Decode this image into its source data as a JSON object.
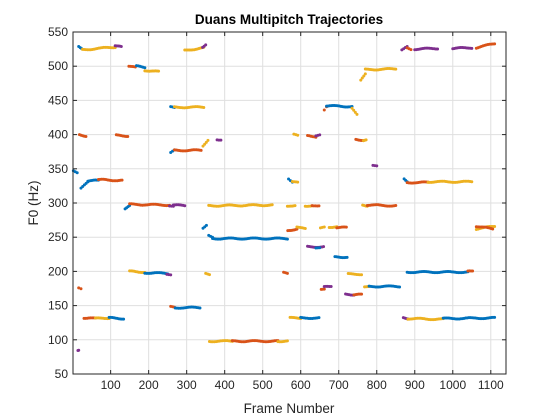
{
  "chart_data": {
    "type": "scatter",
    "title": "Duans Multipitch Trajectories",
    "xlabel": "Frame Number",
    "ylabel": "F0 (Hz)",
    "xlim": [
      1,
      1140
    ],
    "ylim": [
      50,
      550
    ],
    "xticks": [
      100,
      200,
      300,
      400,
      500,
      600,
      700,
      800,
      900,
      1000,
      1100
    ],
    "yticks": [
      50,
      100,
      150,
      200,
      250,
      300,
      350,
      400,
      450,
      500,
      550
    ],
    "grid": true,
    "legend": "none",
    "colors": {
      "blue": "#0072BD",
      "orange": "#D95319",
      "yellow": "#EDB120",
      "purple": "#7E2F8E"
    },
    "segments": [
      {
        "color": "blue",
        "x": [
          2,
          12
        ],
        "y": [
          348,
          345
        ]
      },
      {
        "color": "purple",
        "x": [
          14,
          16
        ],
        "y": [
          84,
          84
        ]
      },
      {
        "color": "orange",
        "x": [
          16,
          22
        ],
        "y": [
          175,
          174
        ]
      },
      {
        "color": "blue",
        "x": [
          16,
          24
        ],
        "y": [
          528,
          525
        ]
      },
      {
        "color": "yellow",
        "x": [
          26,
          112
        ],
        "y": [
          524,
          528
        ]
      },
      {
        "color": "orange",
        "x": [
          18,
          35
        ],
        "y": [
          400,
          398
        ]
      },
      {
        "color": "purple",
        "x": [
          112,
          128
        ],
        "y": [
          530,
          528
        ]
      },
      {
        "color": "blue",
        "x": [
          22,
          40
        ],
        "y": [
          322,
          330
        ]
      },
      {
        "color": "blue",
        "x": [
          40,
          68
        ],
        "y": [
          332,
          333
        ]
      },
      {
        "color": "orange",
        "x": [
          68,
          130
        ],
        "y": [
          334,
          333
        ]
      },
      {
        "color": "orange",
        "x": [
          30,
          60
        ],
        "y": [
          132,
          131
        ]
      },
      {
        "color": "yellow",
        "x": [
          60,
          96
        ],
        "y": [
          131,
          132
        ]
      },
      {
        "color": "blue",
        "x": [
          96,
          134
        ],
        "y": [
          132,
          131
        ]
      },
      {
        "color": "orange",
        "x": [
          115,
          145
        ],
        "y": [
          399,
          398
        ]
      },
      {
        "color": "blue",
        "x": [
          138,
          150
        ],
        "y": [
          292,
          296
        ]
      },
      {
        "color": "orange",
        "x": [
          150,
          255
        ],
        "y": [
          298,
          297
        ]
      },
      {
        "color": "orange",
        "x": [
          148,
          165
        ],
        "y": [
          500,
          498
        ]
      },
      {
        "color": "blue",
        "x": [
          168,
          190
        ],
        "y": [
          500,
          498
        ]
      },
      {
        "color": "yellow",
        "x": [
          190,
          226
        ],
        "y": [
          494,
          492
        ]
      },
      {
        "color": "yellow",
        "x": [
          150,
          190
        ],
        "y": [
          200,
          199
        ]
      },
      {
        "color": "blue",
        "x": [
          190,
          250
        ],
        "y": [
          198,
          197
        ]
      },
      {
        "color": "purple",
        "x": [
          248,
          258
        ],
        "y": [
          195,
          194
        ]
      },
      {
        "color": "purple",
        "x": [
          255,
          265
        ],
        "y": [
          296,
          295
        ]
      },
      {
        "color": "purple",
        "x": [
          265,
          295
        ],
        "y": [
          297,
          296
        ]
      },
      {
        "color": "orange",
        "x": [
          258,
          268
        ],
        "y": [
          148,
          147
        ]
      },
      {
        "color": "blue",
        "x": [
          270,
          335
        ],
        "y": [
          147,
          147
        ]
      },
      {
        "color": "blue",
        "x": [
          258,
          268
        ],
        "y": [
          373,
          377
        ]
      },
      {
        "color": "orange",
        "x": [
          268,
          338
        ],
        "y": [
          377,
          377
        ]
      },
      {
        "color": "blue",
        "x": [
          258,
          268
        ],
        "y": [
          440,
          439
        ]
      },
      {
        "color": "yellow",
        "x": [
          268,
          345
        ],
        "y": [
          440,
          440
        ]
      },
      {
        "color": "yellow",
        "x": [
          295,
          345
        ],
        "y": [
          523,
          527
        ]
      },
      {
        "color": "purple",
        "x": [
          342,
          350
        ],
        "y": [
          528,
          532
        ]
      },
      {
        "color": "blue",
        "x": [
          343,
          352
        ],
        "y": [
          264,
          268
        ]
      },
      {
        "color": "yellow",
        "x": [
          343,
          356
        ],
        "y": [
          384,
          392
        ]
      },
      {
        "color": "purple",
        "x": [
          380,
          390
        ],
        "y": [
          393,
          392
        ]
      },
      {
        "color": "blue",
        "x": [
          358,
          368
        ],
        "y": [
          252,
          250
        ]
      },
      {
        "color": "blue",
        "x": [
          368,
          565
        ],
        "y": [
          248,
          248
        ]
      },
      {
        "color": "yellow",
        "x": [
          358,
          525
        ],
        "y": [
          296,
          297
        ]
      },
      {
        "color": "yellow",
        "x": [
          350,
          360
        ],
        "y": [
          197,
          196
        ]
      },
      {
        "color": "yellow",
        "x": [
          360,
          420
        ],
        "y": [
          98,
          98
        ]
      },
      {
        "color": "orange",
        "x": [
          420,
          540
        ],
        "y": [
          98,
          98
        ]
      },
      {
        "color": "yellow",
        "x": [
          540,
          565
        ],
        "y": [
          98,
          98
        ]
      },
      {
        "color": "orange",
        "x": [
          555,
          565
        ],
        "y": [
          198,
          197
        ]
      },
      {
        "color": "yellow",
        "x": [
          565,
          585
        ],
        "y": [
          295,
          297
        ]
      },
      {
        "color": "blue",
        "x": [
          568,
          578
        ],
        "y": [
          336,
          331
        ]
      },
      {
        "color": "yellow",
        "x": [
          578,
          592
        ],
        "y": [
          332,
          330
        ]
      },
      {
        "color": "orange",
        "x": [
          566,
          590
        ],
        "y": [
          260,
          262
        ]
      },
      {
        "color": "yellow",
        "x": [
          590,
          612
        ],
        "y": [
          264,
          263
        ]
      },
      {
        "color": "yellow",
        "x": [
          572,
          600
        ],
        "y": [
          132,
          132
        ]
      },
      {
        "color": "blue",
        "x": [
          600,
          648
        ],
        "y": [
          132,
          132
        ]
      },
      {
        "color": "yellow",
        "x": [
          582,
          592
        ],
        "y": [
          400,
          399
        ]
      },
      {
        "color": "orange",
        "x": [
          618,
          640
        ],
        "y": [
          398,
          397
        ]
      },
      {
        "color": "purple",
        "x": [
          640,
          650
        ],
        "y": [
          399,
          400
        ]
      },
      {
        "color": "yellow",
        "x": [
          612,
          630
        ],
        "y": [
          296,
          296
        ]
      },
      {
        "color": "orange",
        "x": [
          630,
          648
        ],
        "y": [
          297,
          296
        ]
      },
      {
        "color": "purple",
        "x": [
          618,
          660
        ],
        "y": [
          236,
          236
        ]
      },
      {
        "color": "blue",
        "x": [
          640,
          650
        ],
        "y": [
          235,
          235
        ]
      },
      {
        "color": "yellow",
        "x": [
          652,
          662
        ],
        "y": [
          263,
          264
        ]
      },
      {
        "color": "orange",
        "x": [
          654,
          662
        ],
        "y": [
          173,
          174
        ]
      },
      {
        "color": "purple",
        "x": [
          662,
          680
        ],
        "y": [
          177,
          178
        ]
      },
      {
        "color": "orange",
        "x": [
          662,
          668
        ],
        "y": [
          435,
          440
        ]
      },
      {
        "color": "blue",
        "x": [
          668,
          735
        ],
        "y": [
          442,
          441
        ]
      },
      {
        "color": "yellow",
        "x": [
          735,
          748
        ],
        "y": [
          438,
          430
        ]
      },
      {
        "color": "yellow",
        "x": [
          675,
          695
        ],
        "y": [
          265,
          265
        ]
      },
      {
        "color": "orange",
        "x": [
          695,
          720
        ],
        "y": [
          264,
          264
        ]
      },
      {
        "color": "blue",
        "x": [
          690,
          722
        ],
        "y": [
          221,
          221
        ]
      },
      {
        "color": "purple",
        "x": [
          718,
          740
        ],
        "y": [
          167,
          166
        ]
      },
      {
        "color": "orange",
        "x": [
          740,
          760
        ],
        "y": [
          166,
          166
        ]
      },
      {
        "color": "yellow",
        "x": [
          725,
          760
        ],
        "y": [
          196,
          196
        ]
      },
      {
        "color": "orange",
        "x": [
          745,
          765
        ],
        "y": [
          393,
          392
        ]
      },
      {
        "color": "yellow",
        "x": [
          765,
          772
        ],
        "y": [
          392,
          393
        ]
      },
      {
        "color": "yellow",
        "x": [
          758,
          770
        ],
        "y": [
          480,
          488
        ]
      },
      {
        "color": "yellow",
        "x": [
          770,
          850
        ],
        "y": [
          495,
          496
        ]
      },
      {
        "color": "purple",
        "x": [
          790,
          800
        ],
        "y": [
          355,
          355
        ]
      },
      {
        "color": "yellow",
        "x": [
          763,
          775
        ],
        "y": [
          297,
          296
        ]
      },
      {
        "color": "orange",
        "x": [
          775,
          850
        ],
        "y": [
          297,
          296
        ]
      },
      {
        "color": "yellow",
        "x": [
          768,
          780
        ],
        "y": [
          177,
          177
        ]
      },
      {
        "color": "blue",
        "x": [
          780,
          860
        ],
        "y": [
          178,
          178
        ]
      },
      {
        "color": "purple",
        "x": [
          866,
          880
        ],
        "y": [
          524,
          528
        ]
      },
      {
        "color": "orange",
        "x": [
          880,
          890
        ],
        "y": [
          527,
          525
        ]
      },
      {
        "color": "blue",
        "x": [
          872,
          880
        ],
        "y": [
          336,
          332
        ]
      },
      {
        "color": "orange",
        "x": [
          880,
          935
        ],
        "y": [
          330,
          330
        ]
      },
      {
        "color": "yellow",
        "x": [
          935,
          1050
        ],
        "y": [
          331,
          331
        ]
      },
      {
        "color": "blue",
        "x": [
          880,
          1040
        ],
        "y": [
          199,
          199
        ]
      },
      {
        "color": "orange",
        "x": [
          1040,
          1052
        ],
        "y": [
          200,
          201
        ]
      },
      {
        "color": "purple",
        "x": [
          870,
          882
        ],
        "y": [
          132,
          131
        ]
      },
      {
        "color": "yellow",
        "x": [
          882,
          975
        ],
        "y": [
          131,
          130
        ]
      },
      {
        "color": "blue",
        "x": [
          975,
          1110
        ],
        "y": [
          131,
          132
        ]
      },
      {
        "color": "purple",
        "x": [
          900,
          960
        ],
        "y": [
          525,
          526
        ]
      },
      {
        "color": "purple",
        "x": [
          1000,
          1050
        ],
        "y": [
          526,
          527
        ]
      },
      {
        "color": "orange",
        "x": [
          1062,
          1110
        ],
        "y": [
          527,
          533
        ]
      },
      {
        "color": "yellow",
        "x": [
          1062,
          1110
        ],
        "y": [
          262,
          266
        ]
      },
      {
        "color": "orange",
        "x": [
          1062,
          1105
        ],
        "y": [
          266,
          262
        ]
      }
    ]
  }
}
